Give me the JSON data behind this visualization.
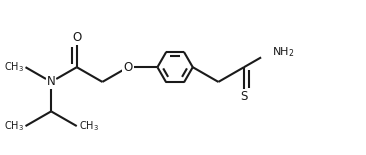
{
  "bg_color": "#ffffff",
  "line_color": "#1a1a1a",
  "line_width": 1.5,
  "font_size": 8.5,
  "figsize": [
    3.66,
    1.55
  ],
  "dpi": 100,
  "xlim": [
    0.0,
    3.66
  ],
  "ylim": [
    0.0,
    1.55
  ]
}
